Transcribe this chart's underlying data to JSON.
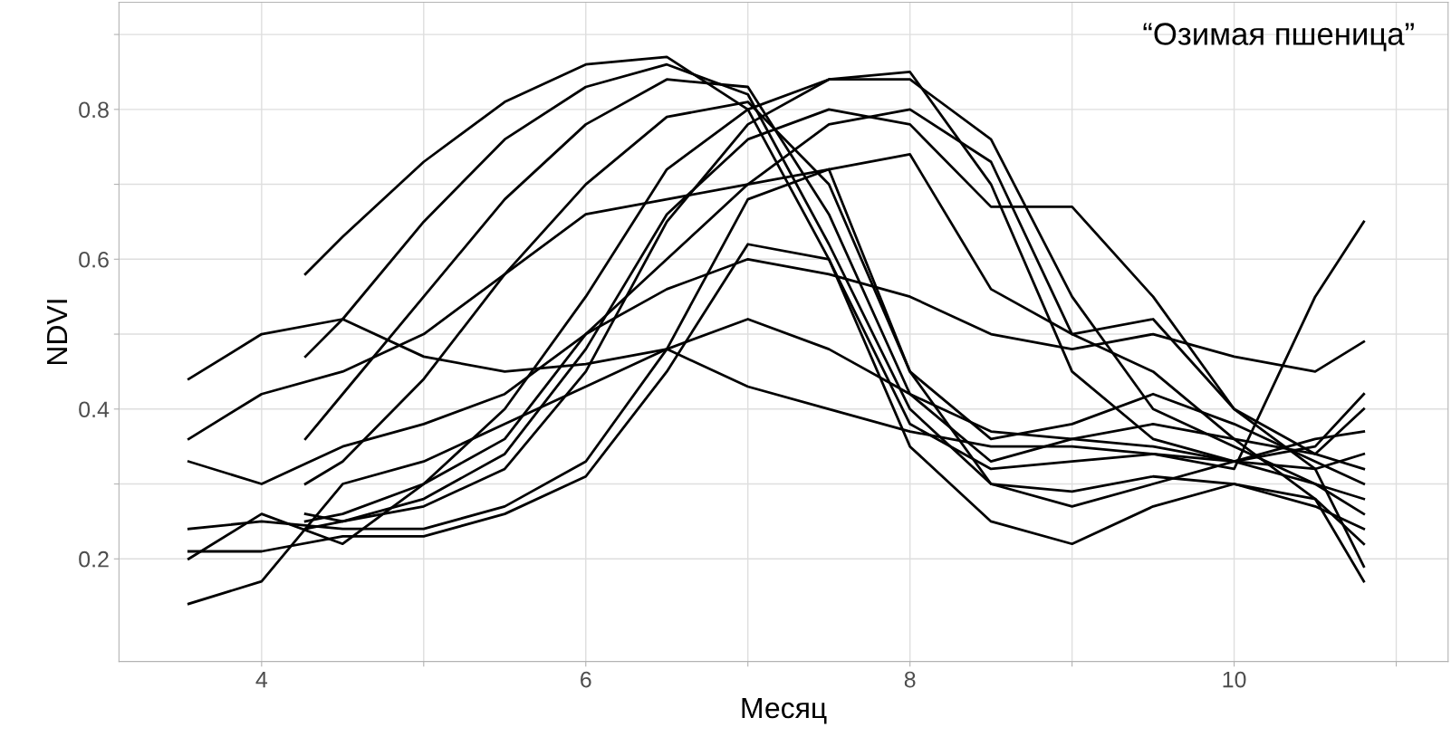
{
  "chart_data": {
    "type": "line",
    "xlabel": "Месяц",
    "ylabel": "NDVI",
    "annotations": [
      "“Озимая пшеница”"
    ],
    "xlim": [
      3.12,
      11.32
    ],
    "ylim": [
      0.063,
      0.943
    ],
    "xticks": [
      4,
      {
        "value": 5,
        "label": null
      },
      6,
      {
        "value": 7,
        "label": null
      },
      8,
      {
        "value": 9,
        "label": null
      },
      10,
      {
        "value": 11,
        "label": null
      }
    ],
    "yticks": [
      0.2,
      {
        "value": 0.3,
        "label": null
      },
      0.4,
      {
        "value": 0.5,
        "label": null
      },
      0.6,
      {
        "value": 0.7,
        "label": null
      },
      0.8,
      {
        "value": 0.9,
        "label": null
      }
    ],
    "grid": true,
    "marker": "none",
    "line_style": "solid",
    "series": [
      {
        "color": "#000000",
        "x": [
          4.27,
          4.5,
          5.0,
          5.5,
          6.0,
          6.5,
          7.0,
          7.5,
          8.0,
          8.5,
          9.0,
          9.5,
          10.0,
          10.5,
          10.8
        ],
        "values": [
          0.58,
          0.63,
          0.73,
          0.81,
          0.86,
          0.87,
          0.8,
          0.6,
          0.38,
          0.32,
          0.33,
          0.34,
          0.33,
          0.32,
          0.34
        ]
      },
      {
        "color": "#000000",
        "x": [
          4.27,
          4.5,
          5.0,
          5.5,
          6.0,
          6.5,
          7.0,
          7.5,
          8.0,
          8.5,
          9.0,
          9.5,
          10.0,
          10.5,
          10.8
        ],
        "values": [
          0.47,
          0.52,
          0.65,
          0.76,
          0.83,
          0.86,
          0.82,
          0.62,
          0.4,
          0.3,
          0.29,
          0.31,
          0.3,
          0.27,
          0.24
        ]
      },
      {
        "color": "#000000",
        "x": [
          4.27,
          4.5,
          5.0,
          5.5,
          6.0,
          6.5,
          7.0,
          7.5,
          8.0,
          8.5,
          9.0,
          9.5,
          10.0,
          10.5,
          10.8
        ],
        "values": [
          0.36,
          0.42,
          0.55,
          0.68,
          0.78,
          0.84,
          0.83,
          0.66,
          0.42,
          0.33,
          0.36,
          0.38,
          0.36,
          0.34,
          0.4
        ]
      },
      {
        "color": "#000000",
        "x": [
          4.27,
          4.5,
          5.0,
          5.5,
          6.0,
          6.5,
          7.0,
          7.5,
          8.0,
          8.5,
          9.0,
          9.5,
          10.0,
          10.5,
          10.8
        ],
        "values": [
          0.3,
          0.33,
          0.44,
          0.58,
          0.7,
          0.79,
          0.81,
          0.7,
          0.45,
          0.36,
          0.38,
          0.42,
          0.38,
          0.33,
          0.3
        ]
      },
      {
        "color": "#000000",
        "x": [
          4.27,
          4.5,
          5.0,
          5.5,
          6.0,
          6.5,
          7.0,
          7.5,
          8.0,
          8.5,
          9.0,
          9.5,
          10.0,
          10.5,
          10.8
        ],
        "values": [
          0.25,
          0.26,
          0.3,
          0.4,
          0.55,
          0.72,
          0.8,
          0.84,
          0.85,
          0.7,
          0.45,
          0.36,
          0.33,
          0.3,
          0.28
        ]
      },
      {
        "color": "#000000",
        "x": [
          4.27,
          4.5,
          5.0,
          5.5,
          6.0,
          6.5,
          7.0,
          7.5,
          8.0,
          8.5,
          9.0,
          9.5,
          10.0,
          10.5,
          10.8
        ],
        "values": [
          0.24,
          0.25,
          0.27,
          0.32,
          0.45,
          0.65,
          0.78,
          0.84,
          0.84,
          0.76,
          0.55,
          0.4,
          0.35,
          0.3,
          0.26
        ]
      },
      {
        "color": "#000000",
        "x": [
          4.27,
          4.5,
          5.0,
          5.5,
          6.0,
          6.5,
          7.0,
          7.5,
          8.0,
          8.5,
          9.0,
          9.5,
          10.0,
          10.5,
          10.8
        ],
        "values": [
          0.26,
          0.25,
          0.28,
          0.34,
          0.48,
          0.66,
          0.76,
          0.8,
          0.78,
          0.67,
          0.67,
          0.55,
          0.4,
          0.34,
          0.32
        ]
      },
      {
        "color": "#000000",
        "x": [
          3.55,
          4.0,
          4.5,
          5.0,
          5.5,
          6.0,
          6.5,
          7.0,
          7.5,
          8.0,
          8.5,
          9.0,
          9.5,
          10.0,
          10.5,
          10.8
        ],
        "values": [
          0.24,
          0.25,
          0.24,
          0.24,
          0.27,
          0.33,
          0.48,
          0.68,
          0.72,
          0.45,
          0.3,
          0.27,
          0.3,
          0.33,
          0.35,
          0.42
        ]
      },
      {
        "color": "#000000",
        "x": [
          3.55,
          4.0,
          4.5,
          5.0,
          5.5,
          6.0,
          6.5,
          7.0,
          7.5,
          8.0,
          8.5,
          9.0,
          9.5,
          10.0,
          10.5,
          10.8
        ],
        "values": [
          0.21,
          0.21,
          0.23,
          0.23,
          0.26,
          0.31,
          0.45,
          0.62,
          0.6,
          0.35,
          0.25,
          0.22,
          0.27,
          0.3,
          0.28,
          0.22
        ]
      },
      {
        "color": "#000000",
        "x": [
          3.55,
          4.0,
          4.5,
          5.0,
          5.5,
          6.0,
          6.5,
          7.0,
          7.5,
          8.0,
          8.5,
          9.0,
          9.5,
          10.0,
          10.5,
          10.8
        ],
        "values": [
          0.44,
          0.5,
          0.52,
          0.47,
          0.45,
          0.46,
          0.48,
          0.52,
          0.48,
          0.42,
          0.37,
          0.36,
          0.35,
          0.33,
          0.36,
          0.37
        ]
      },
      {
        "color": "#000000",
        "x": [
          3.55,
          4.0,
          4.5,
          5.0,
          5.5,
          6.0,
          6.5,
          7.0,
          7.5,
          8.0,
          8.5,
          9.0,
          9.5,
          10.0,
          10.5,
          10.8
        ],
        "values": [
          0.14,
          0.17,
          0.3,
          0.33,
          0.38,
          0.43,
          0.48,
          0.43,
          0.4,
          0.37,
          0.35,
          0.35,
          0.34,
          0.32,
          0.55,
          0.65
        ]
      },
      {
        "color": "#000000",
        "x": [
          3.55,
          4.0,
          4.5,
          5.0,
          5.5,
          6.0,
          6.5,
          7.0,
          7.5,
          8.0,
          8.5,
          9.0,
          9.5,
          10.0,
          10.5,
          10.8
        ],
        "values": [
          0.33,
          0.3,
          0.35,
          0.38,
          0.42,
          0.5,
          0.56,
          0.6,
          0.58,
          0.55,
          0.5,
          0.48,
          0.5,
          0.47,
          0.45,
          0.49
        ]
      },
      {
        "color": "#000000",
        "x": [
          3.55,
          4.0,
          4.5,
          5.0,
          5.5,
          6.0,
          6.5,
          7.0,
          7.5,
          8.0,
          8.5,
          9.0,
          9.5,
          10.0,
          10.5,
          10.8
        ],
        "values": [
          0.36,
          0.42,
          0.45,
          0.5,
          0.58,
          0.66,
          0.68,
          0.7,
          0.72,
          0.74,
          0.56,
          0.5,
          0.52,
          0.4,
          0.32,
          0.19
        ]
      },
      {
        "color": "#000000",
        "x": [
          3.55,
          4.0,
          4.5,
          5.0,
          5.5,
          6.0,
          6.5,
          7.0,
          7.5,
          8.0,
          8.5,
          9.0,
          9.5,
          10.0,
          10.5,
          10.8
        ],
        "values": [
          0.2,
          0.26,
          0.22,
          0.3,
          0.36,
          0.5,
          0.6,
          0.7,
          0.78,
          0.8,
          0.73,
          0.5,
          0.45,
          0.36,
          0.28,
          0.17
        ]
      }
    ]
  }
}
